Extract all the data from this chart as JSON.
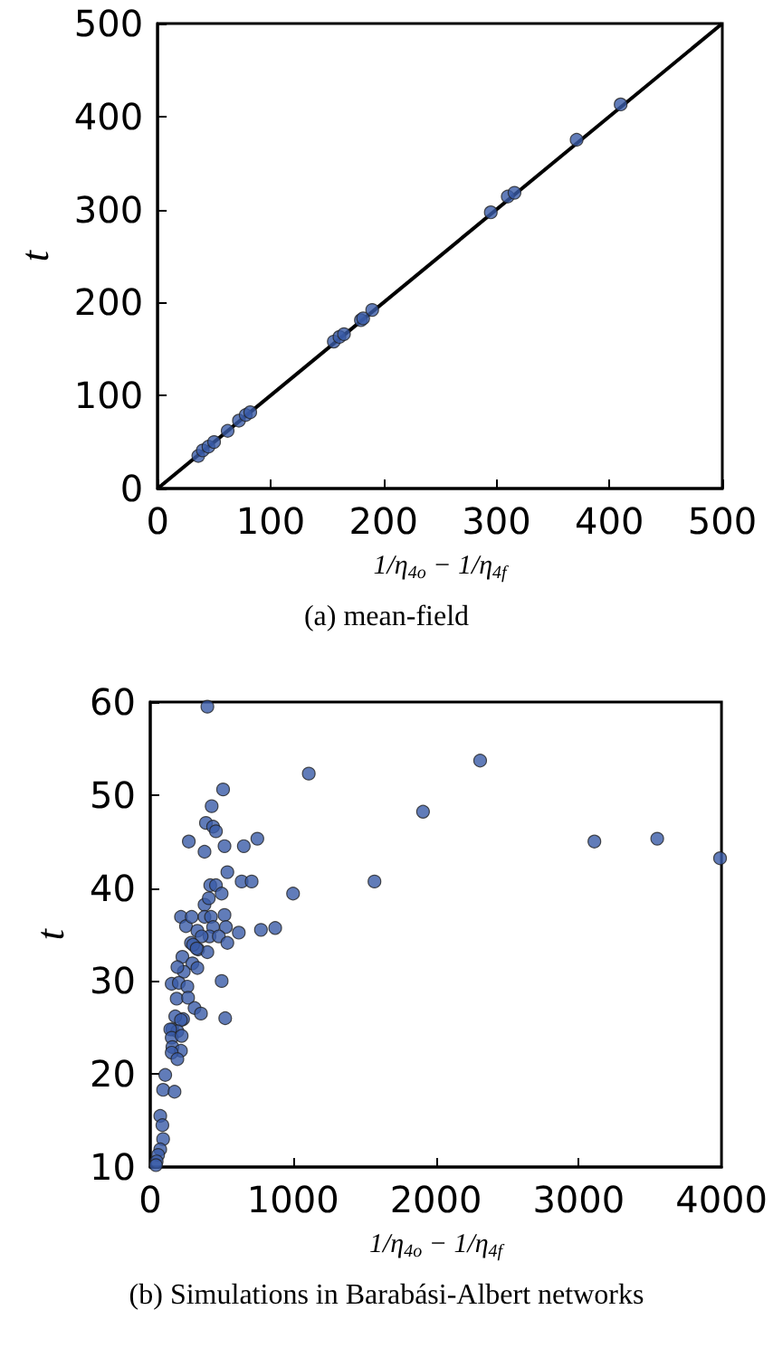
{
  "chart_data": [
    {
      "type": "scatter",
      "xlabel": "1/η$_{4o}$ − 1/η$_{4f}$",
      "ylabel": "t",
      "annotations": [
        "(a) mean-field"
      ],
      "xlim": [
        0,
        500
      ],
      "ylim": [
        0,
        500
      ],
      "xticks": [
        0,
        100,
        200,
        300,
        400,
        500
      ],
      "yticks": [
        0,
        100,
        200,
        300,
        400,
        500
      ],
      "grid": false,
      "marker": "circle",
      "series": [
        {
          "type": "line",
          "color": "#000000",
          "marker": "none",
          "line_style": "solid",
          "x": [
            0,
            500
          ],
          "values": [
            0,
            500
          ]
        },
        {
          "color": "#3a5ba8",
          "x": [
            36,
            40,
            45,
            50,
            62,
            72,
            78,
            82,
            156,
            161,
            165,
            180,
            182,
            190,
            295,
            310,
            316,
            371,
            410
          ],
          "values": [
            35,
            41,
            45,
            50,
            62,
            73,
            79,
            82,
            158,
            163,
            166,
            181,
            183,
            192,
            297,
            314,
            318,
            375,
            413
          ]
        }
      ]
    },
    {
      "type": "scatter",
      "xlabel": "1/η$_{4o}$ − 1/η$_{4f}$",
      "ylabel": "t",
      "annotations": [
        "(b) Simulations in Barabási-Albert networks"
      ],
      "xlim": [
        0,
        4000
      ],
      "ylim": [
        10,
        60
      ],
      "xticks": [
        0,
        1000,
        2000,
        3000,
        4000
      ],
      "yticks": [
        10,
        20,
        30,
        40,
        50,
        60
      ],
      "grid": false,
      "marker": "circle",
      "series": [
        {
          "color": "#3a5ba8",
          "x": [
            400,
            510,
            1110,
            430,
            390,
            440,
            460,
            270,
            380,
            520,
            655,
            750,
            540,
            640,
            710,
            420,
            460,
            500,
            1000,
            380,
            410,
            215,
            250,
            290,
            380,
            425,
            520,
            440,
            530,
            620,
            775,
            875,
            330,
            415,
            480,
            360,
            285,
            335,
            400,
            540,
            300,
            325,
            225,
            295,
            330,
            235,
            190,
            150,
            500,
            200,
            260,
            185,
            265,
            310,
            355,
            525,
            230,
            175,
            155,
            215,
            190,
            140,
            150,
            220,
            155,
            215,
            150,
            190,
            105,
            90,
            170,
            70,
            85,
            90,
            70,
            55,
            45,
            40,
            1570,
            1910,
            2310,
            3110,
            3550,
            3990
          ],
          "values": [
            59.5,
            50.6,
            52.3,
            48.8,
            47.0,
            46.6,
            46.1,
            45.0,
            43.9,
            44.5,
            44.5,
            45.3,
            41.7,
            40.7,
            40.7,
            40.3,
            40.3,
            39.4,
            39.4,
            38.2,
            38.9,
            36.9,
            35.9,
            36.9,
            36.9,
            36.9,
            37.1,
            35.8,
            35.8,
            35.2,
            35.5,
            35.7,
            35.4,
            34.8,
            34.8,
            34.8,
            34.1,
            33.4,
            33.1,
            34.1,
            33.9,
            33.5,
            32.6,
            31.9,
            31.4,
            31.0,
            31.5,
            29.7,
            30.0,
            29.8,
            29.4,
            28.1,
            28.2,
            27.1,
            26.5,
            26.0,
            25.9,
            26.2,
            24.8,
            25.8,
            24.6,
            24.8,
            23.9,
            24.1,
            22.9,
            22.5,
            22.3,
            21.6,
            19.9,
            18.3,
            18.1,
            15.5,
            14.5,
            13.0,
            11.9,
            11.3,
            10.6,
            10.2,
            40.7,
            48.2,
            53.7,
            45.0,
            45.3,
            43.2
          ]
        }
      ]
    }
  ]
}
